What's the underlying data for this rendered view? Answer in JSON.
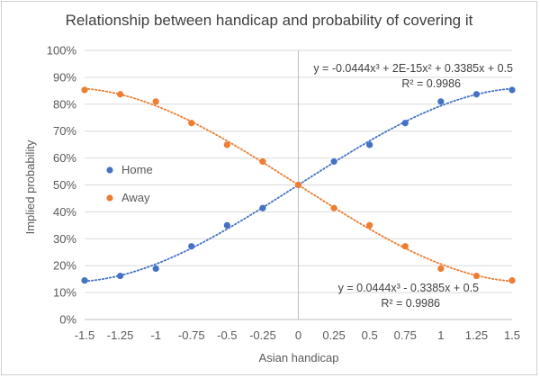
{
  "chart_data": {
    "type": "scatter",
    "title": "Relationship between handicap and probability of covering it",
    "xlabel": "Asian handicap",
    "ylabel": "Implied probability",
    "x_ticks": [
      "-1.5",
      "-1.25",
      "-1",
      "-0.75",
      "-0.5",
      "-0.25",
      "0",
      "0.25",
      "0.5",
      "0.75",
      "1",
      "1.25",
      "1.5"
    ],
    "x_tick_values": [
      -1.5,
      -1.25,
      -1,
      -0.75,
      -0.5,
      -0.25,
      0,
      0.25,
      0.5,
      0.75,
      1,
      1.25,
      1.5
    ],
    "y_ticks": [
      "0%",
      "10%",
      "20%",
      "30%",
      "40%",
      "50%",
      "60%",
      "70%",
      "80%",
      "90%",
      "100%"
    ],
    "y_tick_values": [
      0,
      0.1,
      0.2,
      0.3,
      0.4,
      0.5,
      0.6,
      0.7,
      0.8,
      0.9,
      1.0
    ],
    "xlim": [
      -1.5,
      1.5
    ],
    "ylim": [
      0,
      1
    ],
    "grid": "horizontal",
    "legend_position": "left",
    "x": [
      -1.5,
      -1.25,
      -1,
      -0.75,
      -0.5,
      -0.25,
      0,
      0.25,
      0.5,
      0.75,
      1,
      1.25,
      1.5
    ],
    "series": [
      {
        "name": "Home",
        "color": "#4472c4",
        "values": [
          0.145,
          0.162,
          0.189,
          0.272,
          0.35,
          0.414,
          0.5,
          0.587,
          0.649,
          0.73,
          0.81,
          0.837,
          0.853
        ],
        "trendline": {
          "coefficients": [
            -0.0444,
            0.0,
            0.3385,
            0.5
          ],
          "equation": "y = -0.0444x³ + 2E-15x² + 0.3385x + 0.5",
          "r2": "R² = 0.9986"
        }
      },
      {
        "name": "Away",
        "color": "#ed7d31",
        "values": [
          0.853,
          0.837,
          0.81,
          0.73,
          0.649,
          0.587,
          0.5,
          0.414,
          0.35,
          0.272,
          0.189,
          0.162,
          0.145
        ],
        "trendline": {
          "coefficients": [
            0.0444,
            0.0,
            -0.3385,
            0.5
          ],
          "equation": "y = 0.0444x³ - 0.3385x + 0.5",
          "r2": "R² = 0.9986"
        }
      }
    ],
    "gridline_color": "#d9d9d9",
    "axis_line_color": "#bfbfbf"
  }
}
